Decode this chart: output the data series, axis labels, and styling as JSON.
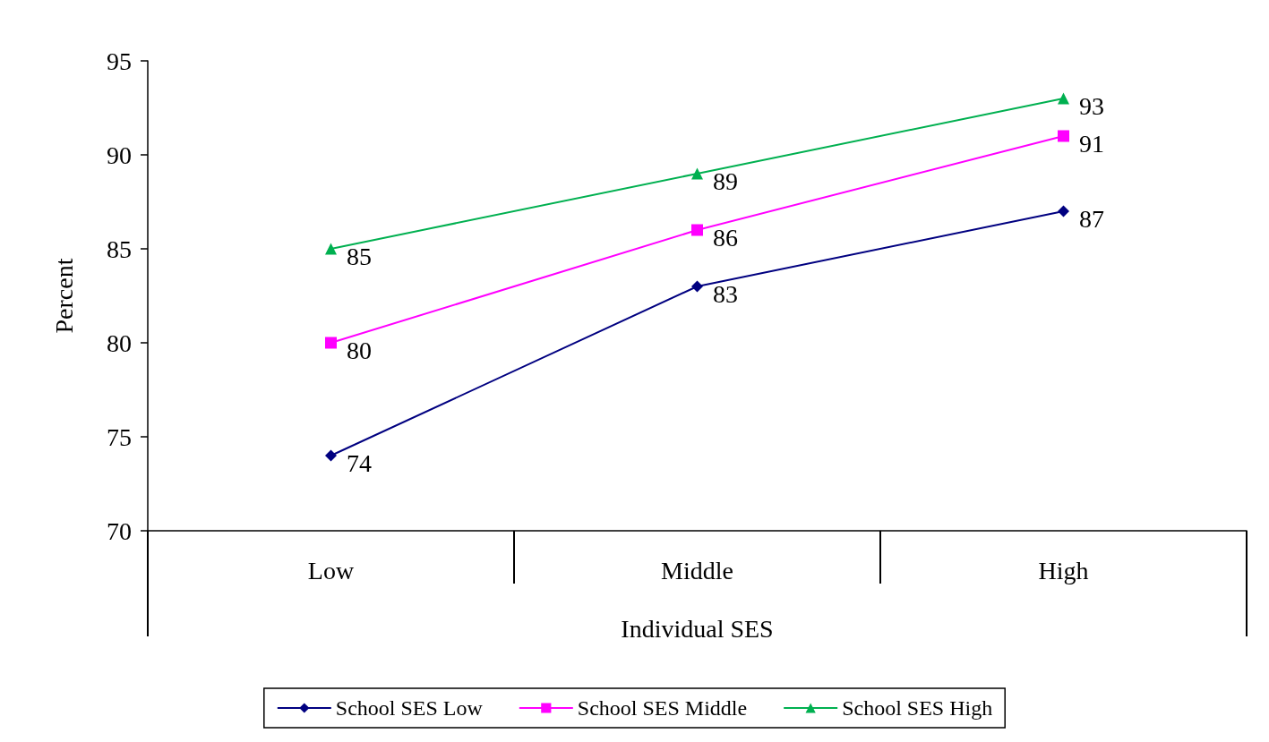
{
  "chart_data": {
    "type": "line",
    "xlabel": "Individual SES",
    "ylabel": "Percent",
    "categories": [
      "Low",
      "Middle",
      "High"
    ],
    "series": [
      {
        "name": "School SES Low",
        "color": "#000080",
        "marker": "diamond",
        "values": [
          74,
          83,
          87
        ]
      },
      {
        "name": "School SES Middle",
        "color": "#ff00ff",
        "marker": "square",
        "values": [
          80,
          86,
          91
        ]
      },
      {
        "name": "School SES High",
        "color": "#00b050",
        "marker": "triangle",
        "values": [
          85,
          89,
          93
        ]
      }
    ],
    "ylim": [
      70,
      95
    ],
    "yticks": [
      70,
      75,
      80,
      85,
      90,
      95
    ],
    "data_labels": true,
    "legend": "bottom",
    "grid": false,
    "line_style": "solid"
  }
}
